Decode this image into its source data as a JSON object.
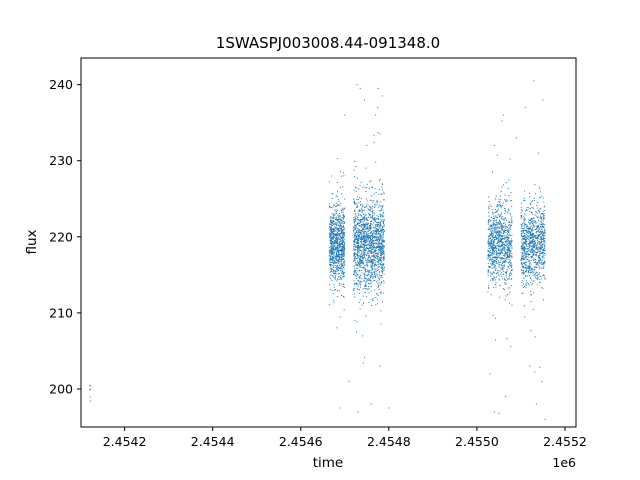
{
  "chart_data": {
    "type": "scatter",
    "title": "1SWASPJ003008.44-091348.0",
    "xlabel": "time",
    "ylabel": "flux",
    "x_offset_label": "1e6",
    "xlim": [
      2454101,
      2455225
    ],
    "ylim": [
      195,
      243.5
    ],
    "x_ticks": [
      2454200,
      2454400,
      2454600,
      2454800,
      2455000,
      2455200
    ],
    "x_tick_labels": [
      "2.4542",
      "2.4544",
      "2.4546",
      "2.4548",
      "2.4550",
      "2.4552"
    ],
    "y_ticks": [
      200,
      210,
      220,
      230,
      240
    ],
    "y_tick_labels": [
      "200",
      "210",
      "220",
      "230",
      "240"
    ],
    "grid": false,
    "legend": false,
    "marker_color": "#1f77b4",
    "series": [
      {
        "clusters": [
          {
            "x_range": [
              2454120,
              2454123
            ],
            "y_center": 200,
            "y_spread": 2,
            "count": 6
          },
          {
            "x_range": [
              2454665,
              2454700
            ],
            "y_center": 219,
            "y_spread": 5,
            "count": 900
          },
          {
            "x_range": [
              2454720,
              2454790
            ],
            "y_center": 219,
            "y_spread": 6,
            "count": 1500
          },
          {
            "x_range": [
              2455025,
              2455080
            ],
            "y_center": 219,
            "y_spread": 5,
            "count": 900
          },
          {
            "x_range": [
              2455100,
              2455155
            ],
            "y_center": 219,
            "y_spread": 5,
            "count": 900
          }
        ],
        "outliers": [
          [
            2454728,
            240
          ],
          [
            2454735,
            239.5
          ],
          [
            2454745,
            238
          ],
          [
            2454776,
            239.5
          ],
          [
            2454785,
            238.5
          ],
          [
            2454700,
            236
          ],
          [
            2454770,
            236
          ],
          [
            2454750,
            232
          ],
          [
            2455060,
            236
          ],
          [
            2455110,
            237
          ],
          [
            2455130,
            240.5
          ],
          [
            2455150,
            238
          ],
          [
            2455040,
            232
          ],
          [
            2455090,
            233
          ],
          [
            2455140,
            231
          ],
          [
            2454670,
            228
          ],
          [
            2454690,
            197.5
          ],
          [
            2454730,
            197
          ],
          [
            2454760,
            198
          ],
          [
            2454800,
            197.5
          ],
          [
            2455040,
            197
          ],
          [
            2455050,
            196.8
          ],
          [
            2455065,
            199
          ],
          [
            2455135,
            198
          ],
          [
            2455155,
            196
          ],
          [
            2454710,
            201
          ],
          [
            2454780,
            203
          ],
          [
            2455030,
            202
          ],
          [
            2455120,
            203
          ],
          [
            2455148,
            201
          ]
        ]
      }
    ]
  }
}
